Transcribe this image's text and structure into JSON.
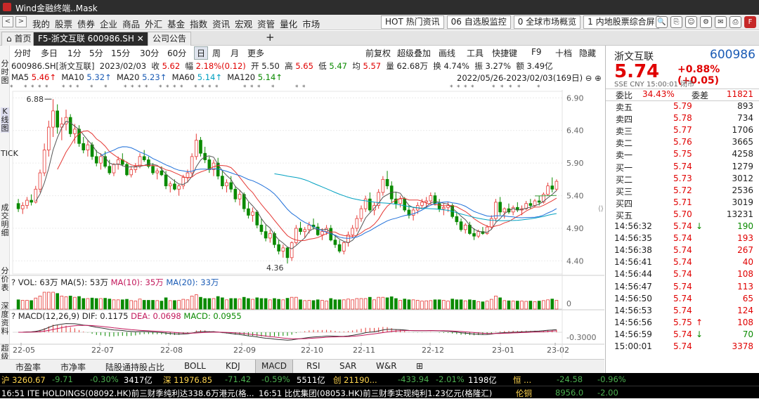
{
  "window": {
    "title": "Wind金融终端..Mask"
  },
  "menu": {
    "items": [
      "我的",
      "股票",
      "债券",
      "企业",
      "商品",
      "外汇",
      "基金",
      "指数",
      "资讯",
      "宏观",
      "资管",
      "量化",
      "市场"
    ],
    "hot_buttons": [
      "HOT 热门资讯",
      "06 自选股监控",
      "0 全球市场概览",
      "1 内地股票综合屏"
    ]
  },
  "tabs": [
    "首页",
    "F5-浙文互联 600986.SH",
    "公司公告"
  ],
  "periods": [
    "分时",
    "多日",
    "1分",
    "5分",
    "15分",
    "30分",
    "60分",
    "日",
    "周",
    "月",
    "更多"
  ],
  "period_selected": "日",
  "tools": [
    "前复权",
    "超级叠加",
    "画线",
    "工具",
    "快捷键",
    "F9",
    "十档",
    "隐藏"
  ],
  "left_tabs": [
    "分时图",
    "K线图",
    "TICK",
    "成交明细",
    "分价表",
    "深度资料",
    "超级"
  ],
  "info": {
    "code": "600986.SH[浙文互联]",
    "date": "2023/02/03",
    "close_label": "收",
    "close": "5.62",
    "amp_label": "幅",
    "amp": "2.18%(0.12)",
    "open_label": "开",
    "open": "5.50",
    "high_label": "高",
    "high": "5.65",
    "low_label": "低",
    "low": "5.47",
    "avg_label": "均",
    "avg": "5.57",
    "vol_label": "量",
    "vol": "62.68万",
    "turn_label": "换",
    "turn": "4.74%",
    "swing_label": "振",
    "swing": "3.27%",
    "amt_label": "额",
    "amt": "3.49亿"
  },
  "ma": {
    "ma5": "MA5",
    "ma5v": "5.46↑",
    "ma10": "MA10",
    "ma10v": "5.32↑",
    "ma20": "MA20",
    "ma20v": "5.23↑",
    "ma60": "MA60",
    "ma60v": "5.14↑",
    "ma120": "MA120",
    "ma120v": "5.14↑"
  },
  "range": "2022/05/26-2023/02/03(169日)",
  "vol_line": {
    "label": "VOL: 63万",
    "ma5": "MA(5): 53万",
    "ma10": "MA(10): 35万",
    "ma20": "MA(20): 33万"
  },
  "macd_line": {
    "label": "MACD(12,26,9)",
    "dif": "DIF: 0.1175",
    "dea": "DEA: 0.0698",
    "macd": "MACD: 0.0955"
  },
  "bottom_tabs": [
    "市盈率",
    "市净率",
    "陆股通持股占比",
    "BOLL",
    "KDJ",
    "MACD",
    "RSI",
    "SAR",
    "W&R"
  ],
  "bottom_selected": "MACD",
  "chart_data": {
    "type": "candlestick",
    "ylim": [
      4.2,
      7.0
    ],
    "yticks": [
      "6.90",
      "6.40",
      "5.90",
      "5.40",
      "4.90",
      "4.40"
    ],
    "xticks": [
      "22-05",
      "22-07",
      "22-08",
      "22-09",
      "22-10",
      "22-11",
      "22-12",
      "23-01",
      "23-02"
    ],
    "annotations": {
      "high": "6.88",
      "low": "4.36"
    },
    "vol_ticks": [
      "0"
    ],
    "macd_ticks": [
      "-0.3000"
    ],
    "ohlc": [
      [
        5.28,
        5.35,
        5.15,
        5.2
      ],
      [
        5.2,
        5.3,
        5.12,
        5.25
      ],
      [
        5.25,
        5.38,
        5.2,
        5.33
      ],
      [
        5.33,
        5.42,
        5.25,
        5.3
      ],
      [
        5.3,
        5.55,
        5.28,
        5.5
      ],
      [
        5.5,
        5.8,
        5.45,
        5.75
      ],
      [
        5.75,
        6.2,
        5.7,
        6.1
      ],
      [
        6.1,
        6.55,
        6.0,
        6.45
      ],
      [
        6.45,
        6.88,
        6.3,
        6.7
      ],
      [
        6.7,
        6.8,
        6.35,
        6.45
      ],
      [
        6.45,
        6.6,
        6.25,
        6.5
      ],
      [
        6.5,
        6.72,
        6.4,
        6.6
      ],
      [
        6.6,
        6.65,
        6.3,
        6.35
      ],
      [
        6.35,
        6.5,
        6.2,
        6.42
      ],
      [
        6.42,
        6.48,
        6.15,
        6.2
      ],
      [
        6.2,
        6.3,
        6.05,
        6.1
      ],
      [
        6.1,
        6.25,
        6.0,
        6.18
      ],
      [
        6.18,
        6.22,
        5.95,
        6.0
      ],
      [
        6.0,
        6.1,
        5.85,
        5.9
      ],
      [
        5.9,
        6.05,
        5.8,
        6.0
      ],
      [
        6.0,
        6.08,
        5.82,
        5.85
      ],
      [
        5.85,
        5.95,
        5.72,
        5.75
      ],
      [
        5.75,
        5.9,
        5.7,
        5.88
      ],
      [
        5.88,
        6.0,
        5.8,
        5.95
      ],
      [
        5.95,
        6.05,
        5.85,
        5.88
      ],
      [
        5.88,
        5.92,
        5.7,
        5.72
      ],
      [
        5.72,
        5.85,
        5.68,
        5.8
      ],
      [
        5.8,
        5.9,
        5.75,
        5.85
      ],
      [
        5.85,
        6.05,
        5.82,
        6.0
      ],
      [
        6.0,
        6.1,
        5.92,
        5.95
      ],
      [
        5.95,
        6.0,
        5.82,
        5.85
      ],
      [
        5.85,
        5.9,
        5.72,
        5.75
      ],
      [
        5.75,
        5.82,
        5.65,
        5.78
      ],
      [
        5.78,
        5.85,
        5.7,
        5.72
      ],
      [
        5.72,
        5.78,
        5.5,
        5.55
      ],
      [
        5.55,
        5.62,
        5.45,
        5.58
      ],
      [
        5.58,
        5.65,
        5.48,
        5.5
      ],
      [
        5.5,
        5.58,
        5.4,
        5.55
      ],
      [
        5.55,
        5.72,
        5.5,
        5.68
      ],
      [
        5.68,
        5.8,
        5.6,
        5.75
      ],
      [
        5.75,
        6.05,
        5.7,
        6.0
      ],
      [
        6.0,
        6.35,
        5.95,
        6.25
      ],
      [
        6.25,
        6.3,
        6.0,
        6.05
      ],
      [
        6.05,
        6.15,
        5.9,
        5.95
      ],
      [
        5.95,
        6.0,
        5.75,
        5.8
      ],
      [
        5.8,
        5.95,
        5.7,
        5.9
      ],
      [
        5.9,
        5.98,
        5.65,
        5.7
      ],
      [
        5.7,
        5.78,
        5.5,
        5.55
      ],
      [
        5.55,
        5.65,
        5.45,
        5.6
      ],
      [
        5.6,
        5.7,
        5.45,
        5.5
      ],
      [
        5.5,
        5.55,
        5.3,
        5.35
      ],
      [
        5.35,
        5.48,
        5.25,
        5.42
      ],
      [
        5.42,
        5.45,
        5.15,
        5.2
      ],
      [
        5.2,
        5.3,
        5.05,
        5.1
      ],
      [
        5.1,
        5.22,
        5.0,
        5.15
      ],
      [
        5.15,
        5.18,
        4.9,
        4.95
      ],
      [
        4.95,
        5.05,
        4.8,
        4.85
      ],
      [
        4.85,
        4.95,
        4.7,
        4.75
      ],
      [
        4.75,
        4.88,
        4.68,
        4.82
      ],
      [
        4.82,
        4.85,
        4.6,
        4.65
      ],
      [
        4.65,
        4.72,
        4.5,
        4.55
      ],
      [
        4.55,
        4.65,
        4.45,
        4.6
      ],
      [
        4.6,
        4.62,
        4.36,
        4.45
      ],
      [
        4.45,
        4.7,
        4.4,
        4.68
      ],
      [
        4.68,
        4.95,
        4.65,
        4.9
      ],
      [
        4.9,
        5.0,
        4.8,
        4.85
      ],
      [
        4.85,
        4.92,
        4.75,
        4.88
      ],
      [
        4.88,
        5.0,
        4.82,
        4.95
      ],
      [
        4.95,
        5.05,
        4.88,
        4.92
      ],
      [
        4.92,
        4.98,
        4.78,
        4.8
      ],
      [
        4.8,
        4.9,
        4.72,
        4.85
      ],
      [
        4.85,
        4.95,
        4.8,
        4.9
      ],
      [
        4.9,
        4.95,
        4.7,
        4.72
      ],
      [
        4.72,
        4.8,
        4.6,
        4.65
      ],
      [
        4.65,
        4.72,
        4.52,
        4.55
      ],
      [
        4.55,
        4.7,
        4.5,
        4.68
      ],
      [
        4.68,
        4.85,
        4.62,
        4.8
      ],
      [
        4.8,
        4.95,
        4.75,
        4.9
      ],
      [
        4.9,
        5.1,
        4.85,
        5.05
      ],
      [
        5.05,
        5.25,
        5.0,
        5.2
      ],
      [
        5.2,
        5.4,
        5.15,
        5.35
      ],
      [
        5.35,
        5.45,
        5.15,
        5.18
      ],
      [
        5.18,
        5.3,
        5.1,
        5.25
      ],
      [
        5.25,
        5.5,
        5.2,
        5.45
      ],
      [
        5.45,
        5.7,
        5.4,
        5.65
      ],
      [
        5.65,
        5.78,
        5.5,
        5.55
      ],
      [
        5.55,
        5.62,
        5.3,
        5.35
      ],
      [
        5.35,
        5.45,
        5.2,
        5.28
      ],
      [
        5.28,
        5.4,
        5.22,
        5.35
      ],
      [
        5.35,
        5.38,
        5.15,
        5.18
      ],
      [
        5.18,
        5.25,
        5.05,
        5.1
      ],
      [
        5.1,
        5.22,
        5.02,
        5.18
      ],
      [
        5.18,
        5.3,
        5.12,
        5.25
      ],
      [
        5.25,
        5.35,
        5.2,
        5.3
      ],
      [
        5.3,
        5.38,
        5.22,
        5.32
      ],
      [
        5.32,
        5.45,
        5.28,
        5.4
      ],
      [
        5.4,
        5.45,
        5.25,
        5.28
      ],
      [
        5.28,
        5.35,
        5.15,
        5.2
      ],
      [
        5.2,
        5.28,
        5.1,
        5.22
      ],
      [
        5.22,
        5.3,
        5.15,
        5.25
      ],
      [
        5.25,
        5.28,
        5.05,
        5.08
      ],
      [
        5.08,
        5.15,
        4.95,
        5.0
      ],
      [
        5.0,
        5.05,
        4.85,
        4.88
      ],
      [
        4.88,
        4.98,
        4.82,
        4.95
      ],
      [
        4.95,
        5.0,
        4.8,
        4.82
      ],
      [
        4.82,
        4.9,
        4.72,
        4.78
      ],
      [
        4.78,
        4.88,
        4.75,
        4.85
      ],
      [
        4.85,
        4.92,
        4.8,
        4.82
      ],
      [
        4.82,
        4.95,
        4.8,
        4.92
      ],
      [
        4.92,
        5.1,
        4.88,
        5.05
      ],
      [
        5.05,
        5.35,
        5.0,
        5.3
      ],
      [
        5.3,
        5.38,
        5.1,
        5.15
      ],
      [
        5.15,
        5.22,
        5.05,
        5.2
      ],
      [
        5.2,
        5.28,
        5.12,
        5.15
      ],
      [
        5.15,
        5.25,
        5.1,
        5.22
      ],
      [
        5.22,
        5.3,
        5.15,
        5.18
      ],
      [
        5.18,
        5.25,
        5.1,
        5.2
      ],
      [
        5.2,
        5.32,
        5.18,
        5.28
      ],
      [
        5.28,
        5.35,
        5.2,
        5.25
      ],
      [
        5.25,
        5.35,
        5.22,
        5.32
      ],
      [
        5.32,
        5.4,
        5.25,
        5.3
      ],
      [
        5.3,
        5.45,
        5.28,
        5.42
      ],
      [
        5.42,
        5.6,
        5.4,
        5.55
      ],
      [
        5.55,
        5.68,
        5.45,
        5.5
      ],
      [
        5.5,
        5.65,
        5.47,
        5.62
      ]
    ]
  },
  "quote": {
    "name": "浙文互联",
    "code": "600986",
    "price": "5.74",
    "change": "+0.88%(+0.05)",
    "meta": "SSE CNY 15:00:01 闭市",
    "webi_l": "委比",
    "webi": "34.43%",
    "weicha_l": "委差",
    "weicha": "11821"
  },
  "asks": [
    {
      "l": "卖五",
      "p": "5.79",
      "v": "893"
    },
    {
      "l": "卖四",
      "p": "5.78",
      "v": "734"
    },
    {
      "l": "卖三",
      "p": "5.77",
      "v": "1706"
    },
    {
      "l": "卖二",
      "p": "5.76",
      "v": "3665"
    },
    {
      "l": "卖一",
      "p": "5.75",
      "v": "4258"
    }
  ],
  "bids": [
    {
      "l": "买一",
      "p": "5.74",
      "v": "1279"
    },
    {
      "l": "买二",
      "p": "5.73",
      "v": "3012"
    },
    {
      "l": "买三",
      "p": "5.72",
      "v": "2536"
    },
    {
      "l": "买四",
      "p": "5.71",
      "v": "3019"
    },
    {
      "l": "买五",
      "p": "5.70",
      "v": "13231"
    }
  ],
  "ticks": [
    {
      "t": "14:56:32",
      "p": "5.74",
      "v": "190",
      "d": "dn"
    },
    {
      "t": "14:56:35",
      "p": "5.74",
      "v": "193",
      "d": ""
    },
    {
      "t": "14:56:38",
      "p": "5.74",
      "v": "267",
      "d": ""
    },
    {
      "t": "14:56:41",
      "p": "5.74",
      "v": "40",
      "d": ""
    },
    {
      "t": "14:56:44",
      "p": "5.74",
      "v": "108",
      "d": ""
    },
    {
      "t": "14:56:47",
      "p": "5.74",
      "v": "113",
      "d": ""
    },
    {
      "t": "14:56:50",
      "p": "5.74",
      "v": "65",
      "d": ""
    },
    {
      "t": "14:56:53",
      "p": "5.74",
      "v": "124",
      "d": ""
    },
    {
      "t": "14:56:56",
      "p": "5.75",
      "v": "108",
      "d": "up"
    },
    {
      "t": "14:56:59",
      "p": "5.74",
      "v": "70",
      "d": "dn"
    },
    {
      "t": "15:00:01",
      "p": "5.74",
      "v": "3378",
      "d": ""
    }
  ],
  "status": [
    "沪 3260.67",
    "-9.71",
    "-0.30%",
    "3417亿",
    "深 11976.85",
    "-71.42",
    "-0.59%",
    "5511亿",
    "创 21190...",
    "-433.94",
    "-2.01%",
    "1198亿",
    "恒 ...",
    "-24.58",
    "-0.96%"
  ],
  "news": [
    "16:51 ITE HOLDINGS(08092.HK)前三财季纯利达338.6万港元(格...",
    "16:51 比优集团(08053.HK)前三财季实现纯利1.23亿元(格隆汇)",
    "伦铜",
    "8956.0",
    "-2.00"
  ]
}
